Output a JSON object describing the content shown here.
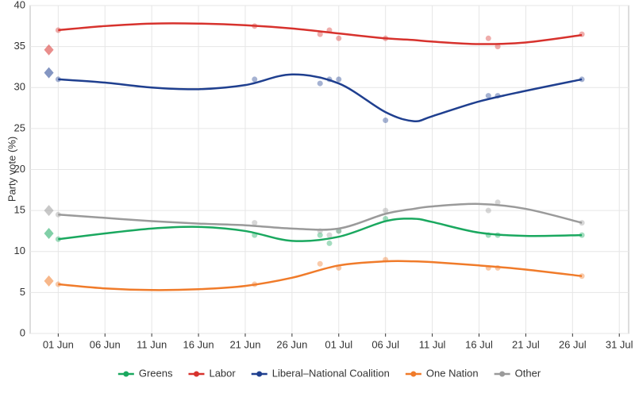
{
  "chart_data": {
    "type": "poll-trend",
    "ylabel": "Party vote (%)",
    "xlim": [
      -3,
      61
    ],
    "ylim": [
      0,
      40
    ],
    "xticks": [
      {
        "value": 0,
        "label": "01 Jun"
      },
      {
        "value": 5,
        "label": "06 Jun"
      },
      {
        "value": 10,
        "label": "11 Jun"
      },
      {
        "value": 15,
        "label": "16 Jun"
      },
      {
        "value": 20,
        "label": "21 Jun"
      },
      {
        "value": 25,
        "label": "26 Jun"
      },
      {
        "value": 30,
        "label": "01 Jul"
      },
      {
        "value": 35,
        "label": "06 Jul"
      },
      {
        "value": 40,
        "label": "11 Jul"
      },
      {
        "value": 45,
        "label": "16 Jul"
      },
      {
        "value": 50,
        "label": "21 Jul"
      },
      {
        "value": 55,
        "label": "26 Jul"
      },
      {
        "value": 60,
        "label": "31 Jul"
      }
    ],
    "yticks": [
      0,
      5,
      10,
      15,
      20,
      25,
      30,
      35,
      40
    ],
    "grid": true,
    "legend": "bottom",
    "election_day": -1,
    "poll_days": [
      0,
      21,
      28,
      29,
      30,
      35,
      46,
      47,
      56
    ],
    "trend_x": [
      0,
      5,
      10,
      15,
      20,
      25,
      30,
      35,
      38,
      40,
      45,
      50,
      56
    ],
    "series": [
      {
        "name": "Greens",
        "color": "#1aa85f",
        "election": 12.2,
        "polls": [
          11.5,
          12,
          12,
          11,
          12.5,
          14,
          12,
          12,
          12
        ],
        "trend": [
          11.5,
          12.2,
          12.8,
          13,
          12.5,
          11.3,
          11.8,
          13.7,
          14,
          13.6,
          12.3,
          11.9,
          12
        ]
      },
      {
        "name": "Labor",
        "color": "#d7322d",
        "election": 34.6,
        "polls": [
          37,
          37.5,
          36.5,
          37,
          36,
          36,
          36,
          35,
          36.5
        ],
        "trend": [
          37,
          37.5,
          37.8,
          37.8,
          37.6,
          37.2,
          36.6,
          36,
          35.8,
          35.6,
          35.3,
          35.5,
          36.4
        ]
      },
      {
        "name": "Liberal–National Coalition",
        "color": "#1f3f8f",
        "election": 31.8,
        "polls": [
          31,
          31,
          30.5,
          31,
          31,
          26,
          29,
          29,
          31
        ],
        "trend": [
          31,
          30.6,
          30,
          29.8,
          30.3,
          31.6,
          30.5,
          27,
          25.9,
          26.5,
          28.3,
          29.6,
          31
        ]
      },
      {
        "name": "One Nation",
        "color": "#f07b2a",
        "election": 6.4,
        "polls": [
          6,
          6,
          8.5,
          null,
          8,
          9,
          8,
          8,
          7
        ],
        "trend": [
          6,
          5.5,
          5.3,
          5.4,
          5.8,
          6.8,
          8.3,
          8.8,
          8.8,
          8.7,
          8.3,
          7.8,
          7
        ]
      },
      {
        "name": "Other",
        "color": "#9a9a9a",
        "election": 15,
        "polls": [
          14.5,
          13.5,
          12.5,
          12,
          12.5,
          15,
          15,
          16,
          13.5
        ],
        "trend": [
          14.5,
          14.1,
          13.7,
          13.4,
          13.2,
          12.8,
          12.8,
          14.6,
          15.2,
          15.5,
          15.8,
          15.2,
          13.5
        ]
      }
    ]
  }
}
